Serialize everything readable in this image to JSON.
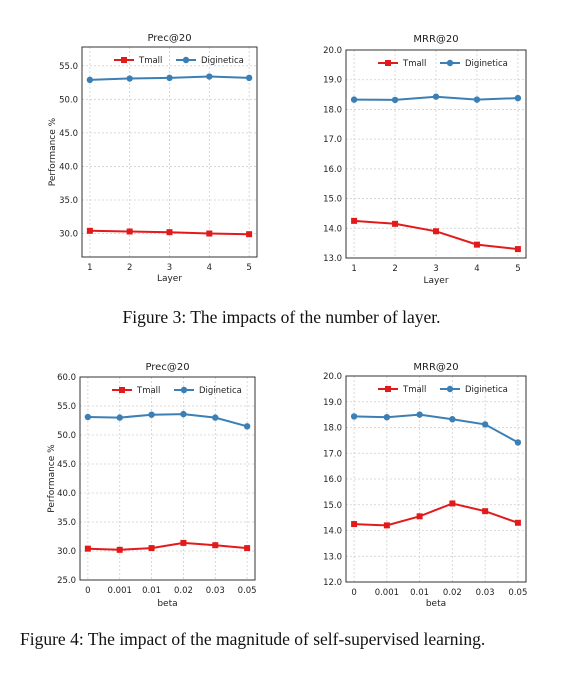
{
  "colors": {
    "tmall": "#e31a1c",
    "diginetica": "#3b7fb5",
    "grid": "#cfcfcf",
    "frame": "#333333"
  },
  "captions": {
    "fig3": "Figure 3: The impacts of the number of layer.",
    "fig4": "Figure 4: The impact of the magnitude of self-supervised learning."
  },
  "chart_data": [
    {
      "type": "line",
      "title": "Prec@20",
      "xlabel": "Layer",
      "ylabel": "Performance %",
      "categories": [
        "1",
        "2",
        "3",
        "4",
        "5"
      ],
      "ylim": [
        26.5,
        57.8
      ],
      "yticks": [
        "30.0",
        "35.0",
        "40.0",
        "45.0",
        "50.0",
        "55.0"
      ],
      "grid": true,
      "legend": "top",
      "series": [
        {
          "name": "Tmall",
          "values": [
            30.4,
            30.3,
            30.2,
            30.0,
            29.9
          ]
        },
        {
          "name": "Diginetica",
          "values": [
            52.9,
            53.1,
            53.2,
            53.4,
            53.2
          ]
        }
      ]
    },
    {
      "type": "line",
      "title": "MRR@20",
      "xlabel": "Layer",
      "ylabel": "",
      "categories": [
        "1",
        "2",
        "3",
        "4",
        "5"
      ],
      "ylim": [
        13.0,
        20.0
      ],
      "yticks": [
        "13.0",
        "14.0",
        "15.0",
        "16.0",
        "17.0",
        "18.0",
        "19.0",
        "20.0"
      ],
      "grid": true,
      "legend": "top",
      "series": [
        {
          "name": "Tmall",
          "values": [
            14.25,
            14.15,
            13.9,
            13.45,
            13.3
          ]
        },
        {
          "name": "Diginetica",
          "values": [
            18.33,
            18.32,
            18.43,
            18.33,
            18.38
          ]
        }
      ]
    },
    {
      "type": "line",
      "title": "Prec@20",
      "xlabel": "beta",
      "ylabel": "Performance %",
      "categories": [
        "0",
        "0.001",
        "0.01",
        "0.02",
        "0.03",
        "0.05"
      ],
      "ylim": [
        25.0,
        60.0
      ],
      "yticks": [
        "25.0",
        "30.0",
        "35.0",
        "40.0",
        "45.0",
        "50.0",
        "55.0",
        "60.0"
      ],
      "grid": true,
      "legend": "top",
      "series": [
        {
          "name": "Tmall",
          "values": [
            30.4,
            30.2,
            30.5,
            31.4,
            31.0,
            30.5
          ]
        },
        {
          "name": "Diginetica",
          "values": [
            53.1,
            53.0,
            53.5,
            53.6,
            53.0,
            51.5
          ]
        }
      ]
    },
    {
      "type": "line",
      "title": "MRR@20",
      "xlabel": "beta",
      "ylabel": "",
      "categories": [
        "0",
        "0.001",
        "0.01",
        "0.02",
        "0.03",
        "0.05"
      ],
      "ylim": [
        12.0,
        20.0
      ],
      "yticks": [
        "12.0",
        "13.0",
        "14.0",
        "15.0",
        "16.0",
        "17.0",
        "18.0",
        "19.0",
        "20.0"
      ],
      "grid": true,
      "legend": "top",
      "series": [
        {
          "name": "Tmall",
          "values": [
            14.25,
            14.2,
            14.55,
            15.05,
            14.75,
            14.3
          ]
        },
        {
          "name": "Diginetica",
          "values": [
            18.43,
            18.4,
            18.5,
            18.32,
            18.12,
            17.42
          ]
        }
      ]
    }
  ]
}
